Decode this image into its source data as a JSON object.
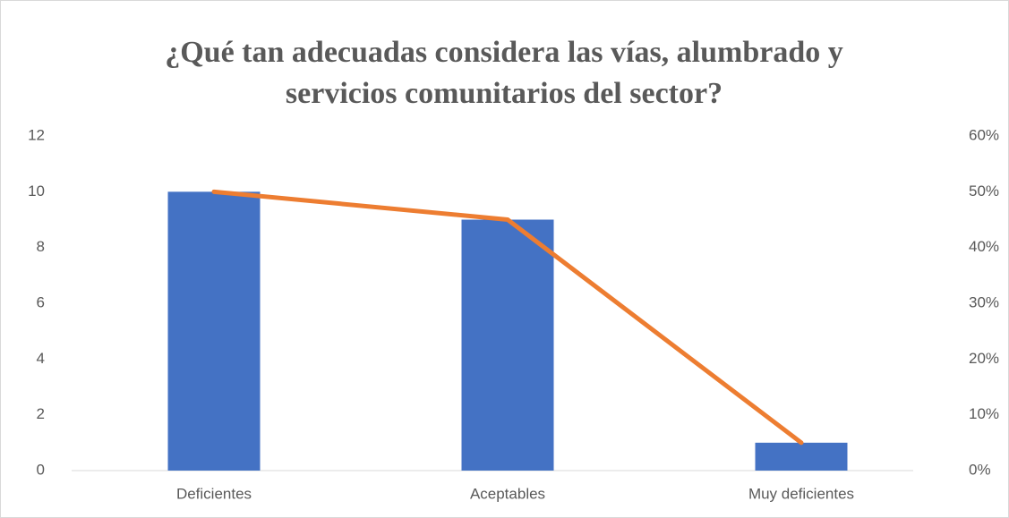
{
  "chart_data": {
    "type": "bar",
    "title": "¿Qué tan adecuadas considera las vías, alumbrado y servicios comunitarios del sector?",
    "categories": [
      "Deficientes",
      "Aceptables",
      "Muy deficientes"
    ],
    "series": [
      {
        "type": "bar",
        "color": "#4472c4",
        "values": [
          10,
          9,
          1
        ]
      },
      {
        "type": "line",
        "color": "#ed7d31",
        "axis": "y2",
        "values": [
          50,
          45,
          5
        ]
      }
    ],
    "ylim": [
      0,
      12
    ],
    "yticks": [
      0,
      2,
      4,
      6,
      8,
      10,
      12
    ],
    "y2lim": [
      0,
      60
    ],
    "y2ticks": [
      {
        "value": 0,
        "label": "0%"
      },
      {
        "value": 10,
        "label": "10%"
      },
      {
        "value": 20,
        "label": "20%"
      },
      {
        "value": 30,
        "label": "30%"
      },
      {
        "value": 40,
        "label": "40%"
      },
      {
        "value": 50,
        "label": "50%"
      },
      {
        "value": 60,
        "label": "60%"
      }
    ],
    "grid": false
  }
}
